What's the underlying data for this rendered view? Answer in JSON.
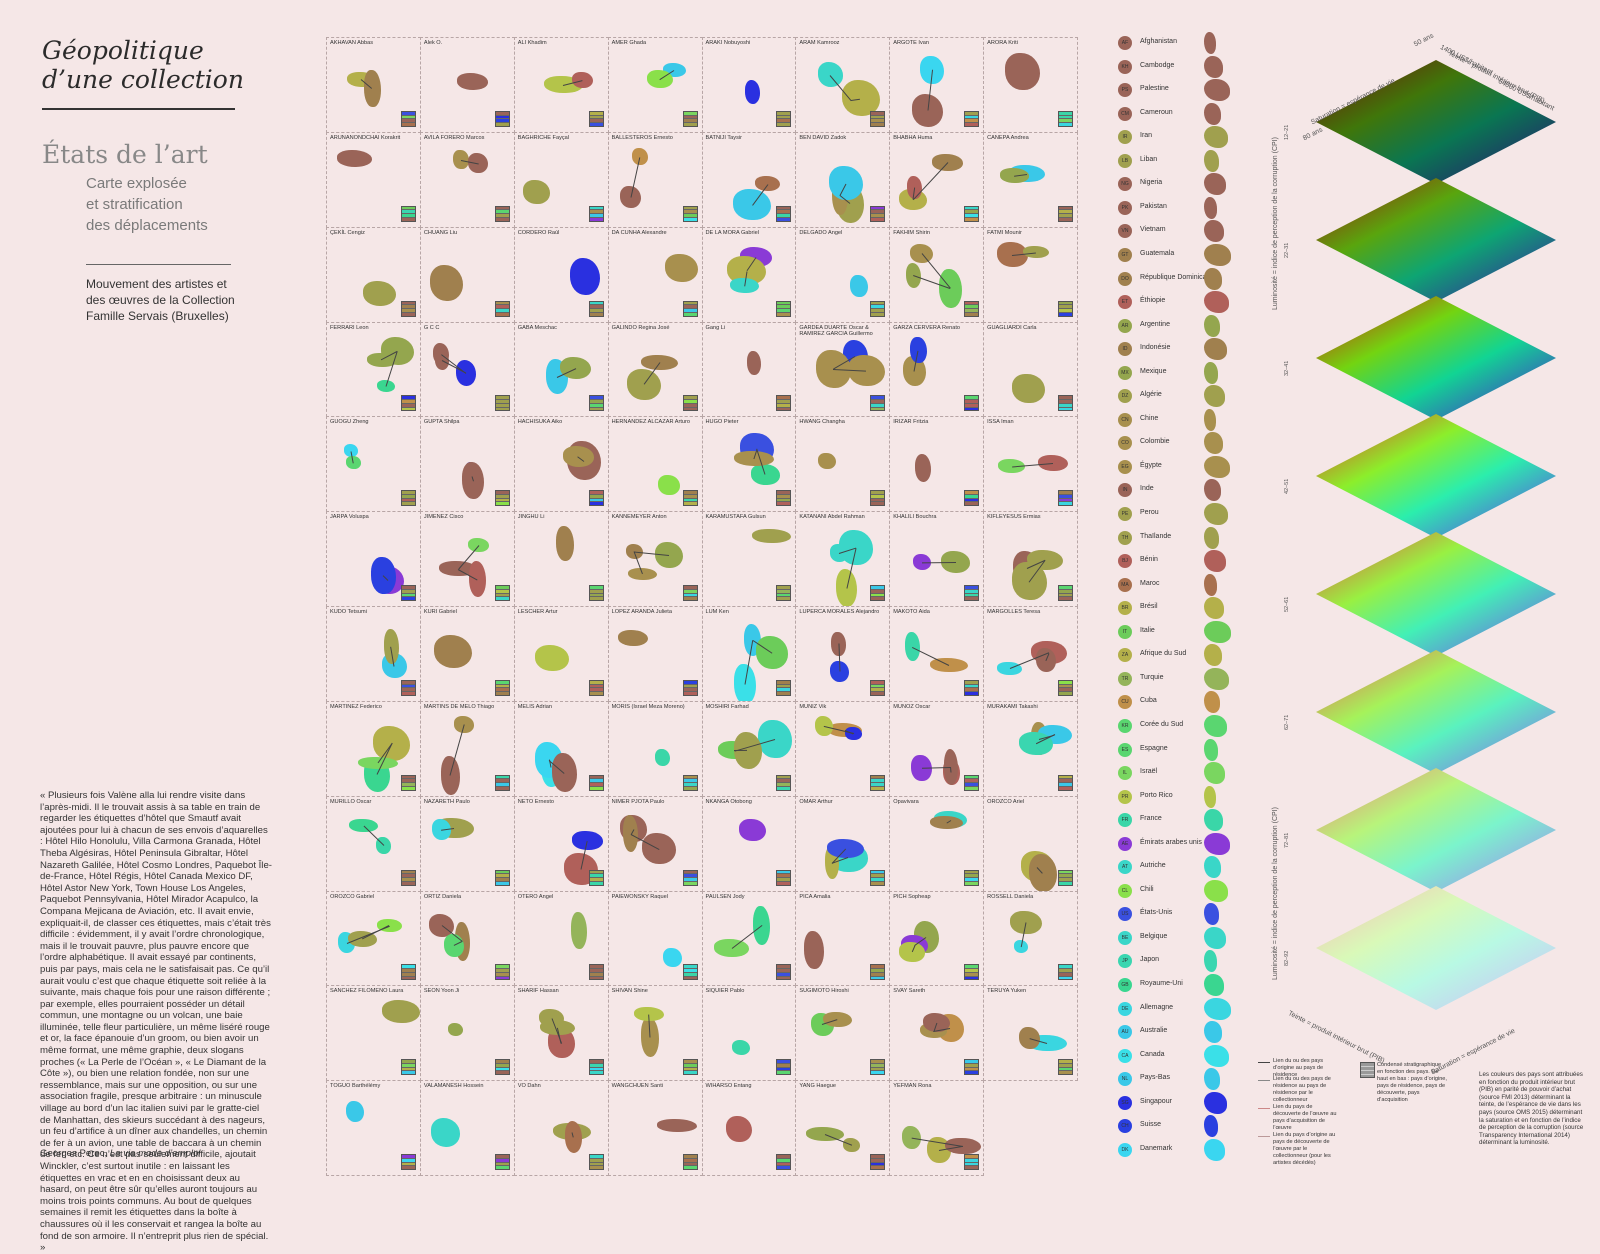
{
  "title": "Géopolitique\nd’une collection",
  "subtitle": "États de l’art",
  "sublines": [
    "Carte explosée",
    "et stratification",
    "des déplacements"
  ],
  "description": "Mouvement des artistes et des œuvres de la Collection Famille Servais (Bruxelles)",
  "quote": "« Plusieurs fois Valène alla lui rendre visite dans l’après-midi. Il le trouvait assis à sa table en train de regarder les étiquettes d’hôtel que Smautf avait ajoutées pour lui à chacun de ses envois d’aquarelles : Hôtel Hilo Honolulu, Villa Carmona Granada, Hôtel Theba Algésiras, Hôtel Peninsula Gibraltar, Hôtel Nazareth Galilée, Hôtel Cosmo Londres, Paquebot Île-de-France, Hôtel Régis, Hôtel Canada Mexico DF, Hôtel Astor New York, Town House Los Angeles, Paquebot Pennsylvania, Hôtel Mirador Acapulco, la Compana  Mejicana de Aviación, etc. Il avait envie, expliquait-il, de classer ces étiquettes, mais c’était très difficile : évidemment, il y avait l’ordre chronologique, mais il le trouvait pauvre, plus pauvre encore que l’ordre alphabétique. Il avait essayé par continents, puis par pays, mais cela ne le satisfaisait pas. Ce qu’il aurait voulu c’est que chaque étiquette soit reliée à la suivante, mais chaque fois pour une raison différente ; par exemple, elles pourraient posséder un détail commun, une montagne ou un volcan, une baie illuminée, telle fleur particulière, un même liséré rouge et or, la face épanouie d’un groom, ou bien avoir un même format, une même graphie, deux slogans proches (« La Perle de l’Océan », « Le Diamant de la Côte »), ou bien une relation fondée, non sur une ressemblance, mais sur une opposition, ou sur une association fragile, presque arbitraire : un minuscule village au bord d’un lac italien suivi par le gratte-ciel de Manhattan, des skieurs succédant à des nageurs, un feu d’artifice à un dîner aux chandelles, un chemin de fer à un avion, une table de baccara à un chemin de fer, etc. Ce n’est pas seulement difficile, ajoutait Winckler, c’est surtout inutile : en laissant les étiquettes en vrac et en en choisissant deux au hasard, on peut être sûr qu’elles auront toujours au moins trois points communs. Au bout de quelques semaines il remit les étiquettes dans la boîte à chaussures où il les conservait et rangea la boîte au fond de son armoire. Il n’entreprit plus rien de spécial. »",
  "quote_author": "Georges Perec,",
  "quote_book": "La vie mode d’emploi",
  "artists": [
    "AKHAVAN Abbas",
    "Alek O.",
    "ALI Khadim",
    "AMER Ghada",
    "ARAKI Nobuyoshi",
    "ARAM Kamrooz",
    "ARGOTE Ivan",
    "ARORA Kriti",
    "ARUNANONDCHAI Korakrit",
    "AVILA FORERO Marcos",
    "BAGHRICHE Fayçal",
    "BALLESTEROS Ernesto",
    "BATNIJI Taysir",
    "BEN DAVID Zadok",
    "BHABHA Huma",
    "CANEPA Andrea",
    "ÇEKİL Cengiz",
    "CHUANG Liu",
    "CORDERO Raúl",
    "DA CUNHA Alexandre",
    "DE LA MORA Gabriel",
    "DELGADO Angel",
    "FAKHIM Shirin",
    "FATMI Mounir",
    "FERRARI Leon",
    "G C C",
    "GABA Meschac",
    "GALINDO Regina José",
    "Gang Li",
    "GARDEA DUARTE Oscar & RAMIREZ GARCIA Guillermo",
    "GARZA CERVERA Renato",
    "GUAGLIARDI Carla",
    "GUOGU Zheng",
    "GUPTA Shilpa",
    "HACHISUKA Aiko",
    "HERNANDEZ ALCAZAR Arturo",
    "HUGO Pieter",
    "HWANG Changha",
    "IRIZAR Fritzia",
    "ISSA Iman",
    "JARPA Voluspa",
    "JIMENEZ Cisco",
    "JINGHU Li",
    "KANNEMEYER Anton",
    "KARAMUSTAFA Gulsun",
    "KATANANI Abdel Rahman",
    "KHALILI Bouchra",
    "KIFLEYESUS Ermias",
    "KUDO Tetsumi",
    "KURI Gabriel",
    "LESCHER Artur",
    "LOPEZ ARANDA Julieta",
    "LUM Ken",
    "LUPERCA MORALES Alejandro",
    "MAKOTO Aida",
    "MARGOLLES Teresa",
    "MARTINEZ Federico",
    "MARTINS DE MELO Thiago",
    "MELIS Adrian",
    "MORIS (Israel Meza Moreno)",
    "MOSHIRI Farhad",
    "MUNIZ Vik",
    "MUNOZ Oscar",
    "MURAKAMI Takashi",
    "MURILLO Oscar",
    "NAZARETH Paulo",
    "NETO Ernesto",
    "NIMER PJOTA Paulo",
    "NKANGA Otobong",
    "OMAR Arthur",
    "Opavivara",
    "OROZCO Ariel",
    "OROZCO Gabriel",
    "ORTIZ Daniela",
    "OTERO Angel",
    "PAIEWONSKY Raquel",
    "PAULSEN Jody",
    "PICA Amalia",
    "PICH Sopheap",
    "ROSSELL Daniela",
    "SANCHEZ FILOMENO Laura",
    "SEON Yoon Ji",
    "SHARIF Hassan",
    "SHIVAN Shine",
    "SIQUIER Pablo",
    "SUGIMOTO Hiroshi",
    "SVAY Sareth",
    "TERUYA Yuken",
    "TOGUO Barthélémy",
    "VALAMANESH Hossein",
    "VO Dahn",
    "WANGCHUEN Santi",
    "WIHARSO Entang",
    "YANG Haegue",
    "YEFMAN Rona",
    ""
  ],
  "countries": [
    {
      "code": "AF",
      "name": "Afghanistan",
      "color": "#9a6458"
    },
    {
      "code": "KH",
      "name": "Cambodge",
      "color": "#9a6458"
    },
    {
      "code": "PS",
      "name": "Palestine",
      "color": "#9a6458"
    },
    {
      "code": "CM",
      "name": "Cameroun",
      "color": "#9a6458"
    },
    {
      "code": "IR",
      "name": "Iran",
      "color": "#a0a04e"
    },
    {
      "code": "LB",
      "name": "Liban",
      "color": "#a0a04e"
    },
    {
      "code": "NG",
      "name": "Nigeria",
      "color": "#9a6458"
    },
    {
      "code": "PK",
      "name": "Pakistan",
      "color": "#9a6458"
    },
    {
      "code": "VN",
      "name": "Vietnam",
      "color": "#9a6458"
    },
    {
      "code": "GT",
      "name": "Guatemala",
      "color": "#a0804e"
    },
    {
      "code": "DO",
      "name": "République Dominicaine",
      "color": "#a0804e"
    },
    {
      "code": "ET",
      "name": "Éthiopie",
      "color": "#b0605a"
    },
    {
      "code": "AR",
      "name": "Argentine",
      "color": "#94a64e"
    },
    {
      "code": "ID",
      "name": "Indonésie",
      "color": "#a0804e"
    },
    {
      "code": "MX",
      "name": "Mexique",
      "color": "#94a64e"
    },
    {
      "code": "DZ",
      "name": "Algérie",
      "color": "#a0a04e"
    },
    {
      "code": "CN",
      "name": "Chine",
      "color": "#a8904e"
    },
    {
      "code": "CO",
      "name": "Colombie",
      "color": "#a8904e"
    },
    {
      "code": "EG",
      "name": "Égypte",
      "color": "#a8904e"
    },
    {
      "code": "IN",
      "name": "Inde",
      "color": "#9a6458"
    },
    {
      "code": "PE",
      "name": "Perou",
      "color": "#a0a04e"
    },
    {
      "code": "TH",
      "name": "Thaïlande",
      "color": "#a0a04e"
    },
    {
      "code": "BJ",
      "name": "Bénin",
      "color": "#b0605a"
    },
    {
      "code": "MA",
      "name": "Maroc",
      "color": "#a8704e"
    },
    {
      "code": "BR",
      "name": "Brésil",
      "color": "#b4b04a"
    },
    {
      "code": "IT",
      "name": "Italie",
      "color": "#6ccc5a"
    },
    {
      "code": "ZA",
      "name": "Afrique du Sud",
      "color": "#b4b04a"
    },
    {
      "code": "TR",
      "name": "Turquie",
      "color": "#94b45a"
    },
    {
      "code": "CU",
      "name": "Cuba",
      "color": "#c0904a"
    },
    {
      "code": "KR",
      "name": "Corée du Sud",
      "color": "#5ad670"
    },
    {
      "code": "ES",
      "name": "Espagne",
      "color": "#5ad670"
    },
    {
      "code": "IL",
      "name": "Israël",
      "color": "#7ad660"
    },
    {
      "code": "PR",
      "name": "Porto Rico",
      "color": "#b4c44a"
    },
    {
      "code": "FR",
      "name": "France",
      "color": "#3ad6a8"
    },
    {
      "code": "AE",
      "name": "Émirats arabes unis",
      "color": "#8a3ad6"
    },
    {
      "code": "AT",
      "name": "Autriche",
      "color": "#3ad6c8"
    },
    {
      "code": "CL",
      "name": "Chili",
      "color": "#8ae04a"
    },
    {
      "code": "US",
      "name": "États-Unis",
      "color": "#3a50e0"
    },
    {
      "code": "BE",
      "name": "Belgique",
      "color": "#3ad6c8"
    },
    {
      "code": "JP",
      "name": "Japon",
      "color": "#3ad6b0"
    },
    {
      "code": "GB",
      "name": "Royaume-Uni",
      "color": "#3ad690"
    },
    {
      "code": "DE",
      "name": "Allemagne",
      "color": "#3ad6e0"
    },
    {
      "code": "AU",
      "name": "Australie",
      "color": "#3ac8e8"
    },
    {
      "code": "CA",
      "name": "Canada",
      "color": "#3ae0e8"
    },
    {
      "code": "NL",
      "name": "Pays-Bas",
      "color": "#3ac8e8"
    },
    {
      "code": "SG",
      "name": "Singapour",
      "color": "#2a30e0"
    },
    {
      "code": "CH",
      "name": "Suisse",
      "color": "#2a40e0"
    },
    {
      "code": "DK",
      "name": "Danemark",
      "color": "#3ad6f0"
    }
  ],
  "key": [
    "Lien du ou des pays d’origine au pays de résidence",
    "Lien du ou des pays de résidence au pays de résidence par le collectionneur",
    "Lien du pays de découverte de l’œuvre au pays d’acquisition de l’œuvre",
    "Lien du pays d’origine  au pays de découverte de l’œuvre par le collectionneur (pour les artistes décédés)"
  ],
  "strat_key": "Condensé stratigraphique en fonction des pays. De haut en bas : pays d’origine, pays de résidence, pays de découverte, pays d’acquisition",
  "stack": {
    "top_axis_hue": "Teinte = produit intérieur brut (PIB)",
    "top_axis_sat": "Saturation = espérance de vie",
    "hue_min": "1400 US$/habitant",
    "hue_max": "64000 US$/habitant",
    "sat_min": "80 ans",
    "sat_max": "50 ans",
    "lum_axis": "Luminosité = indice de perception de la corruption (CPI)",
    "bottom_axis_hue": "Teinte = produit intérieur brut (PIB)",
    "bottom_axis_sat": "Saturation = espérance de vie",
    "levels": [
      "12–21",
      "22–31",
      "32–41",
      "42–51",
      "52–61",
      "62–71",
      "72–81",
      "82–92"
    ]
  },
  "note": "Les couleurs des pays sont attribuées en fonction du produit intérieur brut (PIB) en parité de pouvoir d’achat (source FMI 2013) déterminant la teinte, de l’espérance de vie dans les pays (source OMS 2015) déterminant la saturation et en fonction de l’indice de perception de la corruption (source Transparency International 2014) déterminant la luminosité."
}
